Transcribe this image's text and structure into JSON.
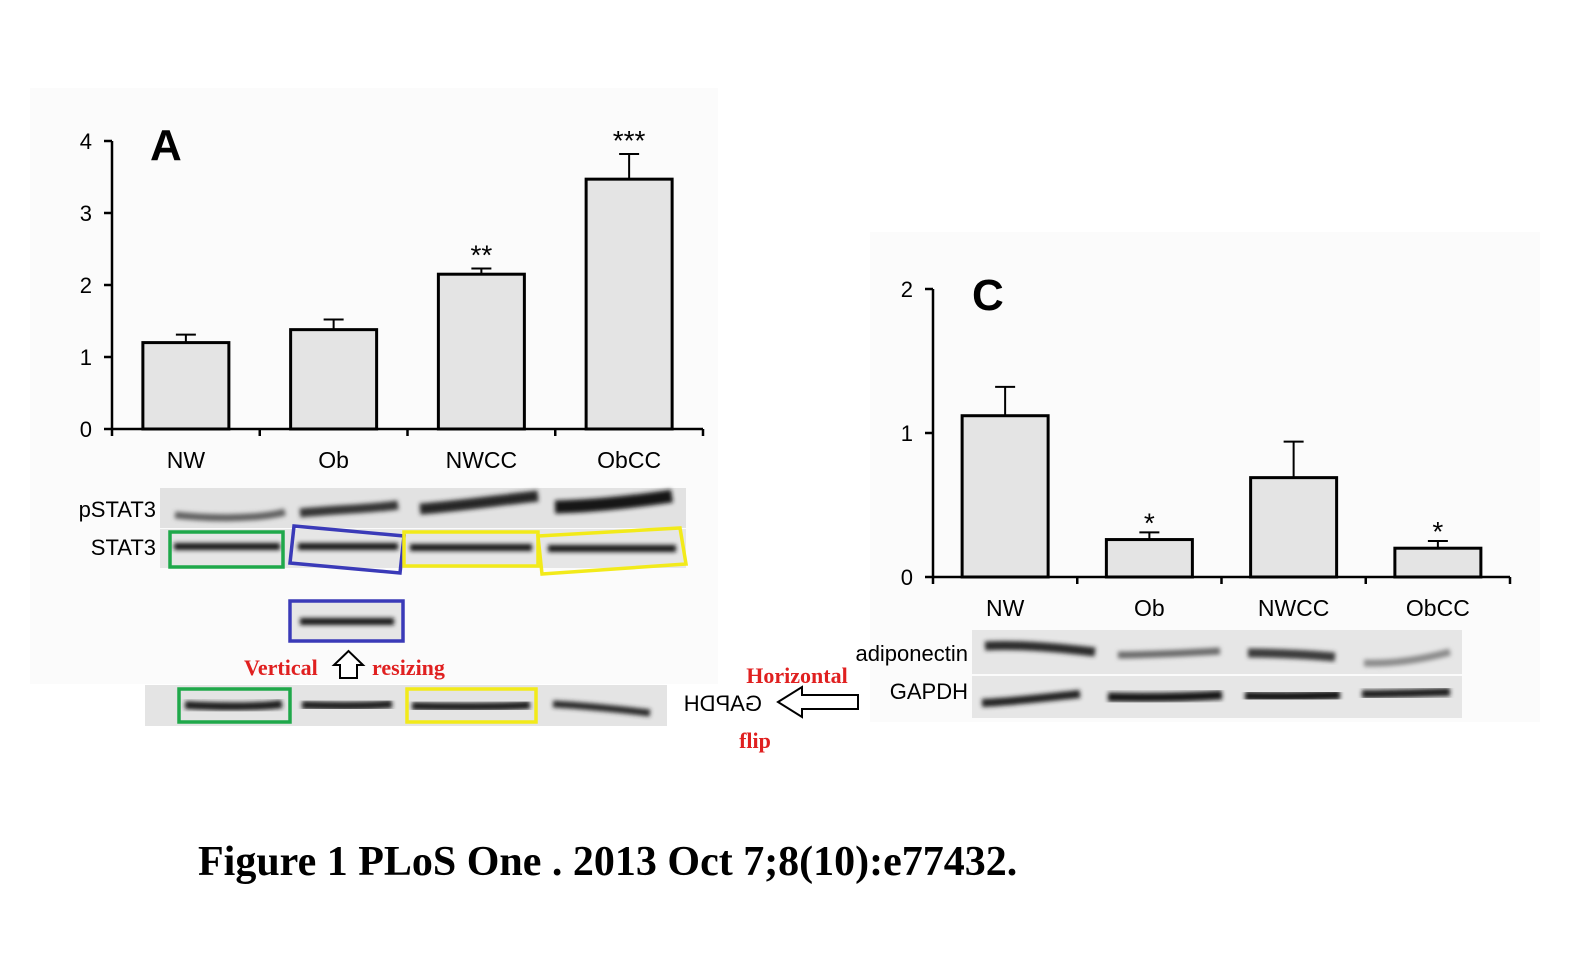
{
  "chart_data": [
    {
      "type": "bar",
      "panel": "A",
      "categories": [
        "NW",
        "Ob",
        "NWCC",
        "ObCC"
      ],
      "values": [
        1.2,
        1.38,
        2.15,
        3.47
      ],
      "errors": [
        0.11,
        0.14,
        0.08,
        0.35
      ],
      "significance": [
        "",
        "",
        "**",
        "***"
      ],
      "ylim": [
        0,
        4
      ],
      "yticks": [
        "0",
        "1",
        "2",
        "3",
        "4"
      ],
      "xlabel": "",
      "ylabel": "",
      "grid": false,
      "bar_color": "#e4e4e4"
    },
    {
      "type": "bar",
      "panel": "C",
      "categories": [
        "NW",
        "Ob",
        "NWCC",
        "ObCC"
      ],
      "values": [
        1.12,
        0.26,
        0.69,
        0.2
      ],
      "errors": [
        0.2,
        0.05,
        0.25,
        0.05
      ],
      "significance": [
        "",
        "*",
        "",
        "*"
      ],
      "ylim": [
        0,
        2
      ],
      "yticks": [
        "0",
        "1",
        "2"
      ],
      "xlabel": "",
      "ylabel": "",
      "grid": false,
      "bar_color": "#e4e4e4"
    }
  ],
  "blots": {
    "pstat3": "pSTAT3",
    "stat3": "STAT3",
    "gapdh_flipped": "GAPDH",
    "adiponectin": "adiponectin",
    "gapdh": "GAPDH"
  },
  "annotations": {
    "vertical": "Vertical",
    "resizing": "resizing",
    "horizontal": "Horizontal",
    "flip": "flip",
    "colors": {
      "green": "#1fa84a",
      "blue": "#3a3ab8",
      "yellow": "#f2ea1a",
      "red": "#e02020"
    }
  },
  "caption": "Figure 1 PLoS One . 2013 Oct 7;8(10):e77432."
}
